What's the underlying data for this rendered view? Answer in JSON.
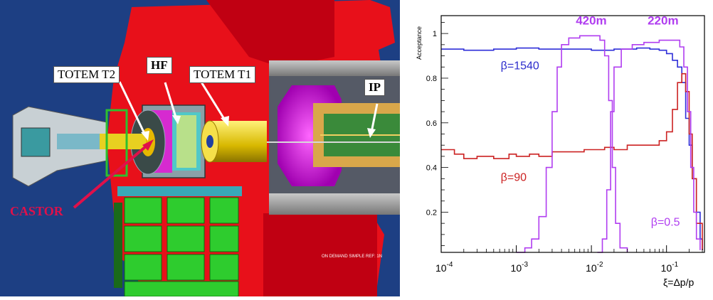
{
  "detector": {
    "labels": {
      "totem_t2": "TOTEM T2",
      "hf": "HF",
      "totem_t1": "TOTEM T1",
      "ip": "IP",
      "castor": "CASTOR"
    },
    "footer_text": "ON DEMAND SIMPLE REF: 1N"
  },
  "chart_data": {
    "type": "line",
    "ylabel": "Acceptance",
    "xlabel": "ξ=Δp/p",
    "x_scale": "log",
    "xlim": [
      0.0001,
      0.32
    ],
    "ylim": [
      0.02,
      1.08
    ],
    "x_ticks": [
      {
        "value": 0.0001,
        "base": "10",
        "exp": "-4"
      },
      {
        "value": 0.001,
        "base": "10",
        "exp": "-3"
      },
      {
        "value": 0.01,
        "base": "10",
        "exp": "-2"
      },
      {
        "value": 0.1,
        "base": "10",
        "exp": "-1"
      }
    ],
    "y_ticks": [
      {
        "value": 0.2,
        "label": "0.2"
      },
      {
        "value": 0.4,
        "label": "0.4"
      },
      {
        "value": 0.6,
        "label": "0.6"
      },
      {
        "value": 0.8,
        "label": "0.8"
      },
      {
        "value": 1,
        "label": "1"
      }
    ],
    "annotations": [
      {
        "text": "420m",
        "x": 0.0062,
        "y": 1.04,
        "color": "#b03df0"
      },
      {
        "text": "220m",
        "x": 0.056,
        "y": 1.04,
        "color": "#b03df0"
      },
      {
        "text": "β=1540",
        "x": 0.00062,
        "y": 0.84,
        "color": "#2c2ccc"
      },
      {
        "text": "β=90",
        "x": 0.00062,
        "y": 0.34,
        "color": "#cc2222"
      },
      {
        "text": "β=0.5",
        "x": 0.062,
        "y": 0.14,
        "color": "#b03df0"
      }
    ],
    "series": [
      {
        "color": "#2e2ed8",
        "points": [
          [
            0.0001,
            0.93
          ],
          [
            0.0002,
            0.925
          ],
          [
            0.0005,
            0.93
          ],
          [
            0.001,
            0.935
          ],
          [
            0.002,
            0.93
          ],
          [
            0.005,
            0.93
          ],
          [
            0.01,
            0.925
          ],
          [
            0.02,
            0.93
          ],
          [
            0.04,
            0.935
          ],
          [
            0.06,
            0.93
          ],
          [
            0.08,
            0.925
          ],
          [
            0.1,
            0.91
          ],
          [
            0.12,
            0.88
          ],
          [
            0.14,
            0.85
          ],
          [
            0.16,
            0.78
          ],
          [
            0.18,
            0.62
          ],
          [
            0.2,
            0.5
          ],
          [
            0.22,
            0.35
          ],
          [
            0.25,
            0.2
          ],
          [
            0.28,
            0.08
          ],
          [
            0.3,
            0.03
          ]
        ]
      },
      {
        "color": "#cc2222",
        "points": [
          [
            0.0001,
            0.48
          ],
          [
            0.00015,
            0.46
          ],
          [
            0.0002,
            0.44
          ],
          [
            0.0003,
            0.45
          ],
          [
            0.0005,
            0.44
          ],
          [
            0.0008,
            0.46
          ],
          [
            0.001,
            0.45
          ],
          [
            0.0015,
            0.46
          ],
          [
            0.002,
            0.45
          ],
          [
            0.003,
            0.47
          ],
          [
            0.005,
            0.47
          ],
          [
            0.008,
            0.48
          ],
          [
            0.01,
            0.48
          ],
          [
            0.015,
            0.49
          ],
          [
            0.02,
            0.48
          ],
          [
            0.03,
            0.5
          ],
          [
            0.05,
            0.5
          ],
          [
            0.08,
            0.52
          ],
          [
            0.1,
            0.56
          ],
          [
            0.12,
            0.66
          ],
          [
            0.14,
            0.78
          ],
          [
            0.16,
            0.82
          ],
          [
            0.18,
            0.74
          ],
          [
            0.2,
            0.55
          ],
          [
            0.22,
            0.35
          ],
          [
            0.25,
            0.15
          ],
          [
            0.3,
            0.03
          ]
        ]
      },
      {
        "color": "#b03df0",
        "points": [
          [
            0.001,
            0.02
          ],
          [
            0.0013,
            0.04
          ],
          [
            0.0016,
            0.08
          ],
          [
            0.002,
            0.18
          ],
          [
            0.0025,
            0.4
          ],
          [
            0.003,
            0.65
          ],
          [
            0.0035,
            0.85
          ],
          [
            0.004,
            0.95
          ],
          [
            0.005,
            0.98
          ],
          [
            0.007,
            0.99
          ],
          [
            0.01,
            0.99
          ],
          [
            0.013,
            0.97
          ],
          [
            0.015,
            0.9
          ],
          [
            0.017,
            0.7
          ],
          [
            0.019,
            0.4
          ],
          [
            0.021,
            0.15
          ],
          [
            0.024,
            0.04
          ],
          [
            0.03,
            0.02
          ]
        ]
      },
      {
        "color": "#b03df0",
        "points": [
          [
            0.012,
            0.02
          ],
          [
            0.014,
            0.08
          ],
          [
            0.016,
            0.3
          ],
          [
            0.018,
            0.65
          ],
          [
            0.02,
            0.85
          ],
          [
            0.025,
            0.93
          ],
          [
            0.035,
            0.95
          ],
          [
            0.05,
            0.96
          ],
          [
            0.08,
            0.97
          ],
          [
            0.12,
            0.97
          ],
          [
            0.15,
            0.94
          ],
          [
            0.17,
            0.85
          ],
          [
            0.19,
            0.65
          ],
          [
            0.21,
            0.4
          ],
          [
            0.23,
            0.2
          ],
          [
            0.25,
            0.08
          ],
          [
            0.28,
            0.03
          ]
        ]
      }
    ]
  }
}
